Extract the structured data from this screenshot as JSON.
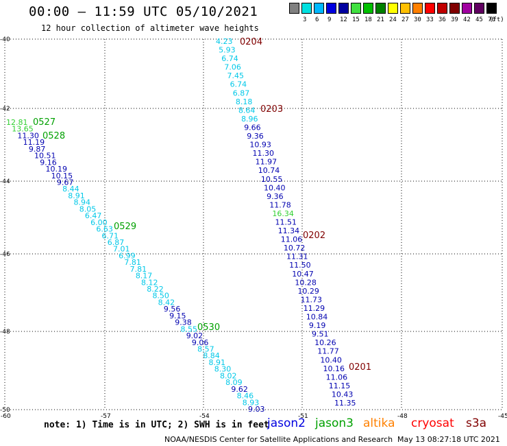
{
  "header": {
    "title": "00:00 – 11:59 UTC 05/10/2021",
    "subtitle": "12 hour collection of altimeter wave heights"
  },
  "legend": {
    "swatches": [
      {
        "color": "#808080",
        "label": ""
      },
      {
        "color": "#00e0e0",
        "label": "3"
      },
      {
        "color": "#00b8ff",
        "label": "6"
      },
      {
        "color": "#0000e0",
        "label": "9"
      },
      {
        "color": "#0000a0",
        "label": "12"
      },
      {
        "color": "#40e040",
        "label": "15"
      },
      {
        "color": "#00c000",
        "label": "18"
      },
      {
        "color": "#008000",
        "label": "21"
      },
      {
        "color": "#ffff00",
        "label": "24"
      },
      {
        "color": "#ffc000",
        "label": "27"
      },
      {
        "color": "#ff8000",
        "label": "30"
      },
      {
        "color": "#ff0000",
        "label": "33"
      },
      {
        "color": "#c00000",
        "label": "36"
      },
      {
        "color": "#800000",
        "label": "39"
      },
      {
        "color": "#a000a0",
        "label": "42"
      },
      {
        "color": "#600060",
        "label": "45"
      },
      {
        "color": "#000000",
        "label": "70"
      }
    ],
    "unit": "(ft)"
  },
  "axes": {
    "lat_labels": [
      "-40",
      "-42",
      "-44",
      "-46",
      "-48",
      "-50"
    ],
    "lon_labels": [
      "-60",
      "-57",
      "-54",
      "-51",
      "-48",
      "-45"
    ]
  },
  "colors": {
    "cyan": "#00c8e8",
    "blue": "#0000b0",
    "green": "#00a000",
    "lightgreen": "#30d030",
    "maroon": "#800000"
  },
  "passes": [
    {
      "label": "0204",
      "color": "maroon"
    },
    {
      "label": "0203",
      "color": "maroon"
    },
    {
      "label": "0202",
      "color": "maroon"
    },
    {
      "label": "0201",
      "color": "maroon"
    },
    {
      "label": "0527",
      "color": "green"
    },
    {
      "label": "0528",
      "color": "green"
    },
    {
      "label": "0529",
      "color": "green"
    },
    {
      "label": "0530",
      "color": "green"
    }
  ],
  "tracks": {
    "east": [
      {
        "v": "4.23",
        "c": "cyan"
      },
      {
        "v": "5.93",
        "c": "cyan"
      },
      {
        "v": "6.74",
        "c": "cyan"
      },
      {
        "v": "7.06",
        "c": "cyan"
      },
      {
        "v": "7.45",
        "c": "cyan"
      },
      {
        "v": "6.74",
        "c": "cyan"
      },
      {
        "v": "6.87",
        "c": "cyan"
      },
      {
        "v": "8.18",
        "c": "cyan"
      },
      {
        "v": "8.64",
        "c": "cyan"
      },
      {
        "v": "8.96",
        "c": "cyan"
      },
      {
        "v": "9.66",
        "c": "blue"
      },
      {
        "v": "9.36",
        "c": "blue"
      },
      {
        "v": "10.93",
        "c": "blue"
      },
      {
        "v": "11.30",
        "c": "blue"
      },
      {
        "v": "11.97",
        "c": "blue"
      },
      {
        "v": "10.74",
        "c": "blue"
      },
      {
        "v": "10.55",
        "c": "blue"
      },
      {
        "v": "10.40",
        "c": "blue"
      },
      {
        "v": "9.36",
        "c": "blue"
      },
      {
        "v": "11.78",
        "c": "blue"
      },
      {
        "v": "16.34",
        "c": "lightgreen"
      },
      {
        "v": "11.51",
        "c": "blue"
      },
      {
        "v": "11.34",
        "c": "blue"
      },
      {
        "v": "11.06",
        "c": "blue"
      },
      {
        "v": "10.72",
        "c": "blue"
      },
      {
        "v": "11.31",
        "c": "blue"
      },
      {
        "v": "11.50",
        "c": "blue"
      },
      {
        "v": "10.47",
        "c": "blue"
      },
      {
        "v": "10.28",
        "c": "blue"
      },
      {
        "v": "10.29",
        "c": "blue"
      },
      {
        "v": "11.73",
        "c": "blue"
      },
      {
        "v": "11.29",
        "c": "blue"
      },
      {
        "v": "10.84",
        "c": "blue"
      },
      {
        "v": "9.19",
        "c": "blue"
      },
      {
        "v": "9.51",
        "c": "blue"
      },
      {
        "v": "10.26",
        "c": "blue"
      },
      {
        "v": "11.77",
        "c": "blue"
      },
      {
        "v": "10.40",
        "c": "blue"
      },
      {
        "v": "10.16",
        "c": "blue"
      },
      {
        "v": "11.06",
        "c": "blue"
      },
      {
        "v": "11.15",
        "c": "blue"
      },
      {
        "v": "10.43",
        "c": "blue"
      },
      {
        "v": "11.35",
        "c": "blue"
      }
    ],
    "west": [
      {
        "v": "12.81",
        "c": "lightgreen"
      },
      {
        "v": "13.65",
        "c": "lightgreen"
      },
      {
        "v": "11.30",
        "c": "blue"
      },
      {
        "v": "11.19",
        "c": "blue"
      },
      {
        "v": "9.87",
        "c": "blue"
      },
      {
        "v": "10.51",
        "c": "blue"
      },
      {
        "v": "9.16",
        "c": "blue"
      },
      {
        "v": "10.19",
        "c": "blue"
      },
      {
        "v": "10.15",
        "c": "blue"
      },
      {
        "v": "9.67",
        "c": "blue"
      },
      {
        "v": "8.44",
        "c": "cyan"
      },
      {
        "v": "8.91",
        "c": "cyan"
      },
      {
        "v": "8.94",
        "c": "cyan"
      },
      {
        "v": "8.05",
        "c": "cyan"
      },
      {
        "v": "6.47",
        "c": "cyan"
      },
      {
        "v": "6.00",
        "c": "cyan"
      },
      {
        "v": "6.63",
        "c": "cyan"
      },
      {
        "v": "6.71",
        "c": "cyan"
      },
      {
        "v": "6.87",
        "c": "cyan"
      },
      {
        "v": "7.01",
        "c": "cyan"
      },
      {
        "v": "6.99",
        "c": "cyan"
      },
      {
        "v": "7.81",
        "c": "cyan"
      },
      {
        "v": "7.81",
        "c": "cyan"
      },
      {
        "v": "8.17",
        "c": "cyan"
      },
      {
        "v": "8.12",
        "c": "cyan"
      },
      {
        "v": "8.22",
        "c": "cyan"
      },
      {
        "v": "8.50",
        "c": "cyan"
      },
      {
        "v": "8.42",
        "c": "cyan"
      },
      {
        "v": "9.56",
        "c": "blue"
      },
      {
        "v": "9.15",
        "c": "blue"
      },
      {
        "v": "9.38",
        "c": "blue"
      },
      {
        "v": "8.55",
        "c": "cyan"
      },
      {
        "v": "9.02",
        "c": "blue"
      },
      {
        "v": "9.06",
        "c": "blue"
      },
      {
        "v": "8.57",
        "c": "cyan"
      },
      {
        "v": "8.84",
        "c": "cyan"
      },
      {
        "v": "8.91",
        "c": "cyan"
      },
      {
        "v": "8.30",
        "c": "cyan"
      },
      {
        "v": "8.02",
        "c": "cyan"
      },
      {
        "v": "8.09",
        "c": "cyan"
      },
      {
        "v": "9.62",
        "c": "blue"
      },
      {
        "v": "8.46",
        "c": "cyan"
      },
      {
        "v": "8.93",
        "c": "cyan"
      },
      {
        "v": "9.03",
        "c": "blue"
      }
    ]
  },
  "footer": {
    "note": "note: 1) Time is in UTC; 2) SWH is in feet",
    "satellites": [
      {
        "name": "jason2",
        "color": "#0000e0"
      },
      {
        "name": "jason3",
        "color": "#00a000"
      },
      {
        "name": "altika",
        "color": "#ff8000"
      },
      {
        "name": "cryosat",
        "color": "#ff0000"
      },
      {
        "name": "s3a",
        "color": "#800000"
      }
    ],
    "credit": "NOAA/NESDIS Center for Satellite Applications and Research",
    "timestamp": "May 13 08:27:18 UTC 2021"
  }
}
